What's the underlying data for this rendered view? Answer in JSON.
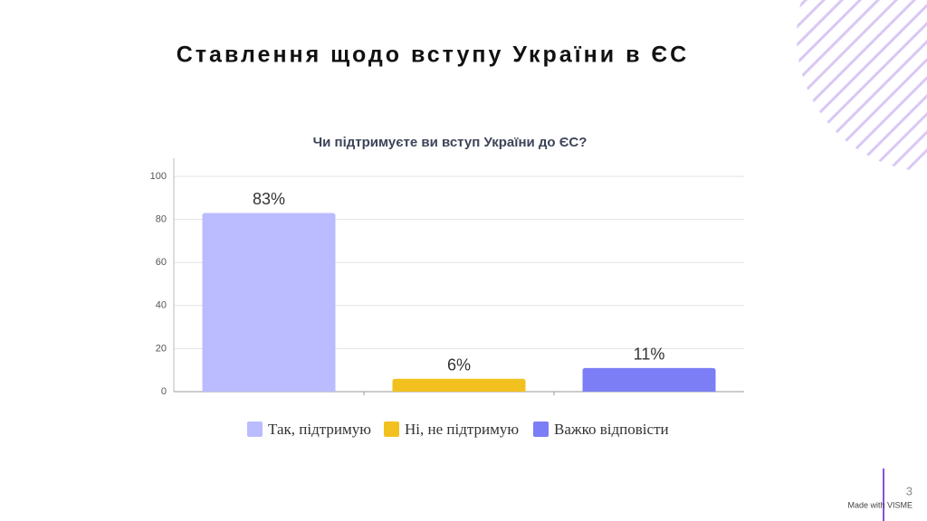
{
  "slide_title": "Ставлення щодо вступу України в ЄС",
  "page_number": "3",
  "footer": "Made with VISME",
  "chart_data": {
    "type": "bar",
    "title": "Чи підтримуєте ви вступ України до ЄС?",
    "categories": [
      null
    ],
    "series": [
      {
        "name": "Так, підтримую",
        "color": "#babcff",
        "values": [
          83
        ],
        "value_labels": [
          "83%"
        ]
      },
      {
        "name": "Ні, не підтримую",
        "color": "#f2c11f",
        "values": [
          6
        ],
        "value_labels": [
          "6%"
        ]
      },
      {
        "name": "Важко відповісти",
        "color": "#7b7ef5",
        "values": [
          11
        ],
        "value_labels": [
          "11%"
        ]
      }
    ],
    "ylim": [
      0,
      100
    ],
    "yticks": [
      0,
      20,
      40,
      60,
      80,
      100
    ],
    "grid": true,
    "legend": "bottom"
  }
}
